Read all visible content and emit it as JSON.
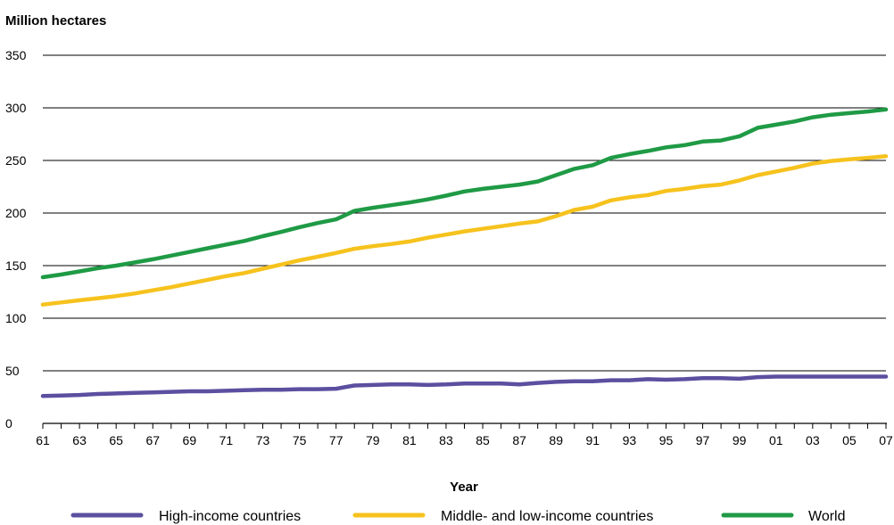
{
  "chart_data": {
    "type": "line",
    "ylabel": "Million hectares",
    "xlabel": "Year",
    "ylim": [
      0,
      350
    ],
    "yticks": [
      0,
      50,
      100,
      150,
      200,
      250,
      300,
      350
    ],
    "grid": "horizontal",
    "legend_position": "bottom",
    "x": [
      "61",
      "62",
      "63",
      "64",
      "65",
      "66",
      "67",
      "68",
      "69",
      "70",
      "71",
      "72",
      "73",
      "74",
      "75",
      "76",
      "77",
      "78",
      "79",
      "80",
      "81",
      "82",
      "83",
      "84",
      "85",
      "86",
      "87",
      "88",
      "89",
      "90",
      "91",
      "92",
      "93",
      "94",
      "95",
      "96",
      "97",
      "98",
      "99",
      "00",
      "01",
      "02",
      "03",
      "04",
      "05",
      "06",
      "07"
    ],
    "xticks": [
      "61",
      "63",
      "65",
      "67",
      "69",
      "71",
      "73",
      "75",
      "77",
      "79",
      "81",
      "83",
      "85",
      "87",
      "89",
      "91",
      "93",
      "95",
      "97",
      "99",
      "01",
      "03",
      "05",
      "07"
    ],
    "series": [
      {
        "name": "High-income countries",
        "color": "#5b4fa0",
        "values": [
          26,
          26.5,
          27,
          28,
          28.5,
          29,
          29.5,
          30,
          30.5,
          30.5,
          31,
          31.5,
          32,
          32,
          32.5,
          32.5,
          33,
          36,
          36.5,
          37,
          37,
          36.5,
          37,
          38,
          38,
          38,
          37,
          38.5,
          39.5,
          40,
          40,
          41,
          41,
          42,
          41.5,
          42,
          43,
          43,
          42.5,
          44,
          44.5,
          44.5,
          44.5,
          44.5,
          44.5,
          44.5,
          44.5
        ]
      },
      {
        "name": "Middle- and low-income countries",
        "color": "#f6c21d",
        "values": [
          113,
          115,
          117,
          119,
          121,
          123.5,
          126.5,
          129.5,
          133,
          136.5,
          140,
          143,
          147,
          151,
          155,
          158.5,
          162,
          166,
          168.5,
          170.5,
          173,
          176.5,
          179.5,
          182.5,
          185,
          187.5,
          190,
          192,
          197,
          203,
          206,
          212,
          215,
          217,
          221,
          223,
          225.5,
          227,
          231,
          236,
          239.5,
          243,
          247,
          249.5,
          251,
          252.5,
          254
        ]
      },
      {
        "name": "World",
        "color": "#1f9a45",
        "values": [
          139,
          141.5,
          144.5,
          147.5,
          150,
          153,
          156,
          159.5,
          163,
          166.5,
          170,
          173.5,
          178,
          182,
          186.5,
          190.5,
          194,
          202,
          205,
          207.5,
          210,
          213,
          216.5,
          220.5,
          223,
          225,
          227,
          230,
          236,
          242,
          245.5,
          252.5,
          256,
          259,
          262.5,
          264.5,
          268,
          269,
          273,
          281,
          284,
          287,
          291,
          293.5,
          295,
          296.5,
          298.5
        ]
      }
    ]
  }
}
